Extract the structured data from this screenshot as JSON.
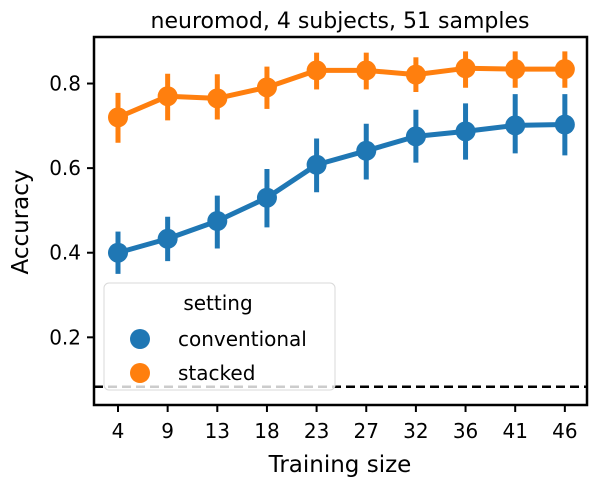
{
  "chart_data": {
    "type": "line",
    "title": "neuromod, 4 subjects, 51 samples",
    "xlabel": "Training size",
    "ylabel": "Accuracy",
    "categories": [
      "4",
      "9",
      "13",
      "18",
      "23",
      "27",
      "32",
      "36",
      "41",
      "46"
    ],
    "yticks": [
      0.2,
      0.4,
      0.6,
      0.8
    ],
    "ylim": [
      0.04,
      0.91
    ],
    "chance_level": 0.083,
    "grid": false,
    "legend": {
      "title": "setting",
      "placement": "lower-left"
    },
    "series": [
      {
        "name": "conventional",
        "color": "#1f77b4",
        "values": [
          0.4,
          0.433,
          0.475,
          0.53,
          0.608,
          0.641,
          0.675,
          0.687,
          0.701,
          0.703
        ],
        "ci_low": [
          0.35,
          0.38,
          0.41,
          0.46,
          0.543,
          0.573,
          0.613,
          0.62,
          0.635,
          0.63
        ],
        "ci_high": [
          0.45,
          0.485,
          0.535,
          0.598,
          0.67,
          0.705,
          0.738,
          0.753,
          0.775,
          0.775
        ]
      },
      {
        "name": "stacked",
        "color": "#ff7f0e",
        "values": [
          0.72,
          0.77,
          0.765,
          0.791,
          0.831,
          0.831,
          0.821,
          0.836,
          0.834,
          0.834
        ],
        "ci_low": [
          0.66,
          0.713,
          0.715,
          0.74,
          0.786,
          0.786,
          0.78,
          0.79,
          0.79,
          0.79
        ],
        "ci_high": [
          0.778,
          0.823,
          0.822,
          0.84,
          0.873,
          0.873,
          0.862,
          0.876,
          0.876,
          0.876
        ]
      }
    ]
  }
}
